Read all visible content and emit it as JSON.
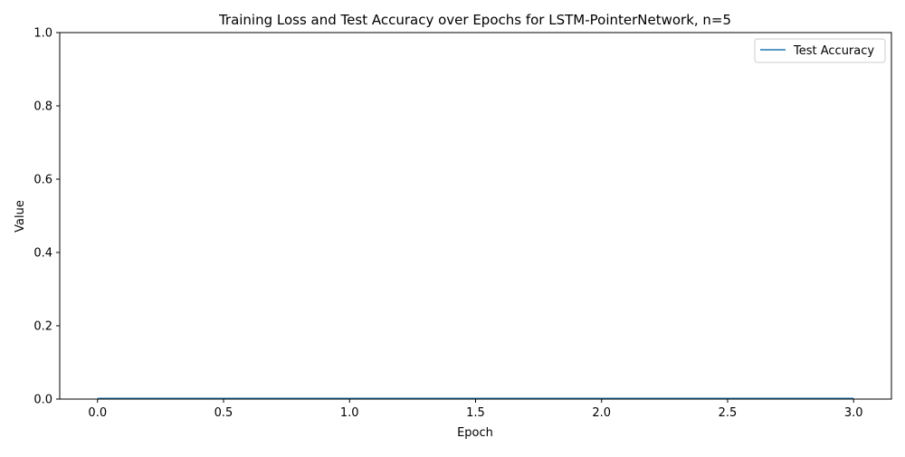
{
  "chart_data": {
    "type": "line",
    "title": "Training Loss and Test Accuracy over Epochs for LSTM-PointerNetwork, n=5",
    "xlabel": "Epoch",
    "ylabel": "Value",
    "xlim": [
      -0.15,
      3.15
    ],
    "ylim": [
      0,
      1
    ],
    "x_ticks": [
      0.0,
      0.5,
      1.0,
      1.5,
      2.0,
      2.5,
      3.0
    ],
    "x_tick_labels": [
      "0.0",
      "0.5",
      "1.0",
      "1.5",
      "2.0",
      "2.5",
      "3.0"
    ],
    "y_ticks": [
      0.0,
      0.2,
      0.4,
      0.6,
      0.8,
      1.0
    ],
    "y_tick_labels": [
      "0.0",
      "0.2",
      "0.4",
      "0.6",
      "0.8",
      "1.0"
    ],
    "grid": false,
    "legend_position": "top-right",
    "series": [
      {
        "name": "Test Accuracy",
        "color": "#1f77b4",
        "x": [
          0,
          1,
          2,
          3
        ],
        "y": [
          0.0,
          0.0,
          0.0,
          0.0
        ]
      }
    ]
  }
}
